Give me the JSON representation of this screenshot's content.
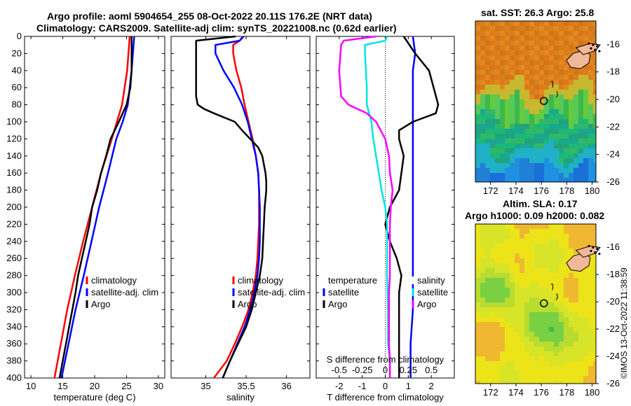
{
  "header": {
    "title_line1": "Argo profile: aoml 5904654_255 08-Oct-2022 20.11S 176.2E (NRT data)",
    "title_line2": "Climatology: CARS2009. Satellite-adj clim: synTS_20221008.nc (0.62d earlier)"
  },
  "maps": {
    "sst_title": "sat. SST: 26.3 Argo: 25.8",
    "sla_title1": "Altim. SLA: 0.17",
    "sla_title2": "Argo h1000: 0.09 h2000: 0.082",
    "lat_ticks": [
      "-16",
      "-18",
      "-20",
      "-22",
      "-24",
      "-26"
    ],
    "lon_ticks": [
      "172",
      "174",
      "176",
      "178",
      "180"
    ],
    "argo_position": {
      "lon": 176.2,
      "lat": -20.11
    }
  },
  "copyright": "©IMOS 13-Oct-2022 11:38:59",
  "colors": {
    "climatology": "#ff0000",
    "satellite": "#0000ff",
    "argo": "#000000",
    "t_diff": "#ff00ff",
    "s_diff": "#00e5e5"
  },
  "chart_data": [
    {
      "type": "line",
      "xlabel": "temperature (deg C)",
      "ylabel": "",
      "xlim": [
        9,
        31
      ],
      "ylim": [
        400,
        0
      ],
      "xticks": [
        "10",
        "15",
        "20",
        "25",
        "30"
      ],
      "yticks": [
        "0",
        "20",
        "40",
        "60",
        "80",
        "100",
        "120",
        "140",
        "160",
        "180",
        "200",
        "220",
        "240",
        "260",
        "280",
        "300",
        "320",
        "340",
        "360",
        "380",
        "400"
      ],
      "legend": [
        "climatology",
        "satellite-adj. clim",
        "Argo"
      ],
      "series": [
        {
          "name": "climatology",
          "depth": [
            0,
            40,
            80,
            120,
            160,
            200,
            240,
            280,
            320,
            360,
            400
          ],
          "values": [
            25.5,
            25.1,
            24.3,
            22.7,
            21.0,
            19.6,
            18.2,
            16.9,
            15.7,
            14.7,
            13.7
          ]
        },
        {
          "name": "satellite-adj. clim",
          "depth": [
            0,
            40,
            80,
            100,
            120,
            160,
            200,
            240,
            280,
            320,
            360,
            400
          ],
          "values": [
            26.2,
            25.8,
            25.2,
            24.4,
            23.4,
            22.1,
            20.7,
            19.5,
            18.3,
            17.0,
            15.9,
            14.8
          ]
        },
        {
          "name": "Argo",
          "depth": [
            0,
            40,
            60,
            80,
            100,
            120,
            140,
            160,
            180,
            200,
            220,
            240,
            260,
            280,
            300,
            320,
            340,
            360,
            380,
            400
          ],
          "values": [
            25.8,
            25.8,
            25.6,
            25.0,
            23.8,
            22.5,
            21.8,
            21.0,
            20.4,
            19.6,
            19.2,
            18.6,
            18.0,
            17.4,
            17.0,
            16.5,
            16.0,
            15.5,
            15.0,
            14.5
          ]
        }
      ]
    },
    {
      "type": "line",
      "xlabel": "salinity",
      "ylabel": "",
      "xlim": [
        34.57,
        36.29
      ],
      "ylim": [
        400,
        0
      ],
      "xticks": [
        "35",
        "35.5",
        "36"
      ],
      "legend": [
        "climatology",
        "satellite-adj. clim",
        "Argo"
      ],
      "series": [
        {
          "name": "climatology",
          "depth": [
            0,
            5,
            10,
            20,
            40,
            60,
            80,
            100,
            120,
            140,
            160,
            180,
            200,
            220,
            240,
            260,
            280,
            300,
            320,
            340,
            360,
            380,
            400
          ],
          "values": [
            35.46,
            35.42,
            35.34,
            35.34,
            35.38,
            35.44,
            35.48,
            35.53,
            35.58,
            35.62,
            35.65,
            35.66,
            35.66,
            35.66,
            35.65,
            35.64,
            35.62,
            35.58,
            35.53,
            35.45,
            35.36,
            35.26,
            35.1
          ]
        },
        {
          "name": "satellite-adj. clim",
          "depth": [
            0,
            5,
            10,
            20,
            40,
            60,
            80,
            100,
            120,
            140,
            160,
            180,
            200,
            220,
            240,
            260,
            280,
            300,
            320,
            340,
            360,
            380,
            400
          ],
          "values": [
            35.47,
            35.42,
            35.12,
            35.12,
            35.22,
            35.35,
            35.45,
            35.52,
            35.57,
            35.62,
            35.65,
            35.66,
            35.67,
            35.67,
            35.67,
            35.66,
            35.64,
            35.6,
            35.55,
            35.48,
            35.39,
            35.3,
            35.21
          ]
        },
        {
          "name": "Argo",
          "depth": [
            0,
            5,
            10,
            30,
            50,
            70,
            80,
            85,
            90,
            100,
            110,
            120,
            130,
            140,
            150,
            160,
            170,
            180,
            190,
            200,
            220,
            240,
            260,
            280,
            300,
            320,
            340,
            360,
            380,
            400
          ],
          "values": [
            35.37,
            34.88,
            34.88,
            34.88,
            34.88,
            34.88,
            34.9,
            34.98,
            35.1,
            35.36,
            35.45,
            35.55,
            35.65,
            35.7,
            35.72,
            35.74,
            35.75,
            35.75,
            35.74,
            35.73,
            35.72,
            35.71,
            35.7,
            35.67,
            35.62,
            35.57,
            35.5,
            35.4,
            35.3,
            35.21
          ]
        }
      ]
    },
    {
      "type": "line",
      "xlabel": "T difference from climatology",
      "xlabel_top": "S difference from climatology",
      "ylabel": "",
      "xlim": [
        -3,
        3
      ],
      "ylim": [
        400,
        0
      ],
      "xticks": [
        "-2",
        "-1",
        "0",
        "1",
        "2"
      ],
      "top_ticks": [
        "-0.5",
        "-0.25",
        "0",
        "0.25",
        "0.5"
      ],
      "legend": {
        "left": [
          "temperature",
          "satellite",
          "Argo"
        ],
        "right": [
          "salinity",
          "satellite",
          "Argo"
        ]
      },
      "series": [
        {
          "name": "T satellite",
          "depth": [
            0,
            20,
            40,
            80,
            100,
            120,
            160,
            200,
            240,
            280,
            320,
            360,
            400
          ],
          "values": [
            1.2,
            1.3,
            1.2,
            1.2,
            1.2,
            1.2,
            1.2,
            1.2,
            1.2,
            1.2,
            1.2,
            1.1,
            1.1
          ]
        },
        {
          "name": "T Argo",
          "depth": [
            0,
            20,
            40,
            60,
            80,
            90,
            100,
            110,
            120,
            140,
            160,
            180,
            200,
            220,
            240,
            260,
            280,
            300,
            320,
            340,
            360,
            380,
            400
          ],
          "values": [
            0.8,
            1.3,
            1.9,
            2.1,
            2.3,
            2.2,
            1.2,
            0.6,
            0.6,
            0.8,
            0.7,
            0.6,
            0.2,
            0.0,
            0.2,
            0.5,
            0.7,
            0.6,
            0.6,
            0.6,
            0.6,
            0.6,
            0.6
          ]
        },
        {
          "name": "S satellite",
          "depth": [
            0,
            5,
            10,
            20,
            60,
            80,
            100,
            120,
            140,
            160,
            180,
            200,
            220,
            240,
            280,
            320,
            360,
            380,
            400
          ],
          "values": [
            0.02,
            0.0,
            -0.22,
            -0.22,
            -0.2,
            -0.2,
            -0.15,
            -0.13,
            -0.1,
            -0.07,
            -0.04,
            0.0,
            0.02,
            0.02,
            0.02,
            0.03,
            0.03,
            0.05,
            0.05
          ]
        },
        {
          "name": "S Argo",
          "depth": [
            0,
            5,
            10,
            40,
            70,
            80,
            90,
            100,
            110,
            120,
            140,
            160,
            180,
            200,
            220,
            240,
            260,
            280,
            300,
            320,
            340,
            360,
            380,
            400
          ],
          "values": [
            -0.1,
            -0.45,
            -0.48,
            -0.5,
            -0.48,
            -0.4,
            -0.2,
            -0.1,
            -0.05,
            0.0,
            0.04,
            0.05,
            0.08,
            0.06,
            0.05,
            0.05,
            0.05,
            0.05,
            0.04,
            0.04,
            0.04,
            0.04,
            0.05,
            0.05
          ]
        }
      ]
    }
  ]
}
